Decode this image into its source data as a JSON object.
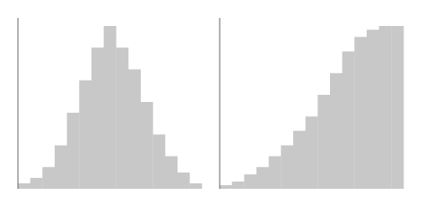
{
  "chart_data": [
    {
      "type": "histogram",
      "bins": [
        0,
        1,
        2,
        3,
        4,
        5,
        6,
        7,
        8,
        9,
        10,
        11,
        12,
        13,
        14,
        15
      ],
      "values": [
        0.5,
        1,
        2,
        4,
        7,
        10,
        13,
        15,
        13,
        11,
        8,
        5,
        3,
        1.5,
        0.5
      ],
      "color": "#c8c8c8",
      "xlim": [
        0,
        15
      ],
      "xticks": [
        3,
        6,
        9,
        12
      ],
      "ylim": [
        0,
        15.75
      ],
      "yticks": [
        2.5,
        5,
        7.5,
        10,
        12.5,
        15
      ],
      "tick_labels": false,
      "grid": false
    },
    {
      "type": "histogram",
      "bins": [
        0,
        1,
        2,
        3,
        4,
        5,
        6,
        7,
        8,
        9,
        10,
        11,
        12,
        13,
        14,
        15
      ],
      "values": [
        0.5,
        1,
        2,
        3,
        4.5,
        6,
        8,
        10,
        13,
        16,
        19,
        21,
        22,
        22.5,
        22.5
      ],
      "color": "#c8c8c8",
      "xlim": [
        0,
        15
      ],
      "xticks": [
        3,
        6,
        9,
        12
      ],
      "ylim": [
        0,
        23.625
      ],
      "yticks": [
        3.75,
        7.5,
        11.25,
        15,
        18.75,
        22.5
      ],
      "tick_labels": false,
      "grid": false
    }
  ]
}
